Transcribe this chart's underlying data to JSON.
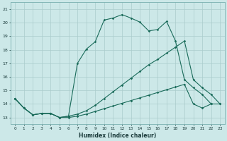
{
  "xlabel": "Humidex (Indice chaleur)",
  "background_color": "#cce8e8",
  "grid_color": "#aacccc",
  "line_color": "#1a6b5a",
  "xlim": [
    -0.5,
    23.5
  ],
  "ylim": [
    12.5,
    21.5
  ],
  "yticks": [
    13,
    14,
    15,
    16,
    17,
    18,
    19,
    20,
    21
  ],
  "xticks": [
    0,
    1,
    2,
    3,
    4,
    5,
    6,
    7,
    8,
    9,
    10,
    11,
    12,
    13,
    14,
    15,
    16,
    17,
    18,
    19,
    20,
    21,
    22,
    23
  ],
  "line1_x": [
    0,
    1,
    2,
    3,
    4,
    5,
    6,
    7,
    8,
    9,
    10,
    11,
    12,
    13,
    14,
    15,
    16,
    17,
    18,
    19,
    20,
    21,
    22
  ],
  "line1_y": [
    14.4,
    13.7,
    13.2,
    13.3,
    13.3,
    13.0,
    13.1,
    17.0,
    18.05,
    18.6,
    20.2,
    20.35,
    20.6,
    20.35,
    20.05,
    19.4,
    19.5,
    20.1,
    18.65,
    15.8,
    15.2,
    14.7,
    14.0
  ],
  "line2_x": [
    0,
    1,
    2,
    3,
    4,
    5,
    6,
    7,
    8,
    9,
    10,
    11,
    12,
    13,
    14,
    15,
    16,
    17,
    18,
    19,
    20,
    21,
    22,
    23
  ],
  "line2_y": [
    14.4,
    13.7,
    13.2,
    13.3,
    13.3,
    13.0,
    13.1,
    13.25,
    13.5,
    13.9,
    14.4,
    14.9,
    15.4,
    15.9,
    16.4,
    16.9,
    17.3,
    17.75,
    18.2,
    18.65,
    15.8,
    15.2,
    14.7,
    14.0
  ],
  "line3_x": [
    0,
    1,
    2,
    3,
    4,
    5,
    6,
    7,
    8,
    9,
    10,
    11,
    12,
    13,
    14,
    15,
    16,
    17,
    18,
    19,
    20,
    21,
    22,
    23
  ],
  "line3_y": [
    14.4,
    13.7,
    13.2,
    13.3,
    13.3,
    13.0,
    13.0,
    13.1,
    13.25,
    13.45,
    13.65,
    13.85,
    14.05,
    14.25,
    14.45,
    14.65,
    14.85,
    15.05,
    15.25,
    15.45,
    14.0,
    13.7,
    14.0,
    14.0
  ]
}
